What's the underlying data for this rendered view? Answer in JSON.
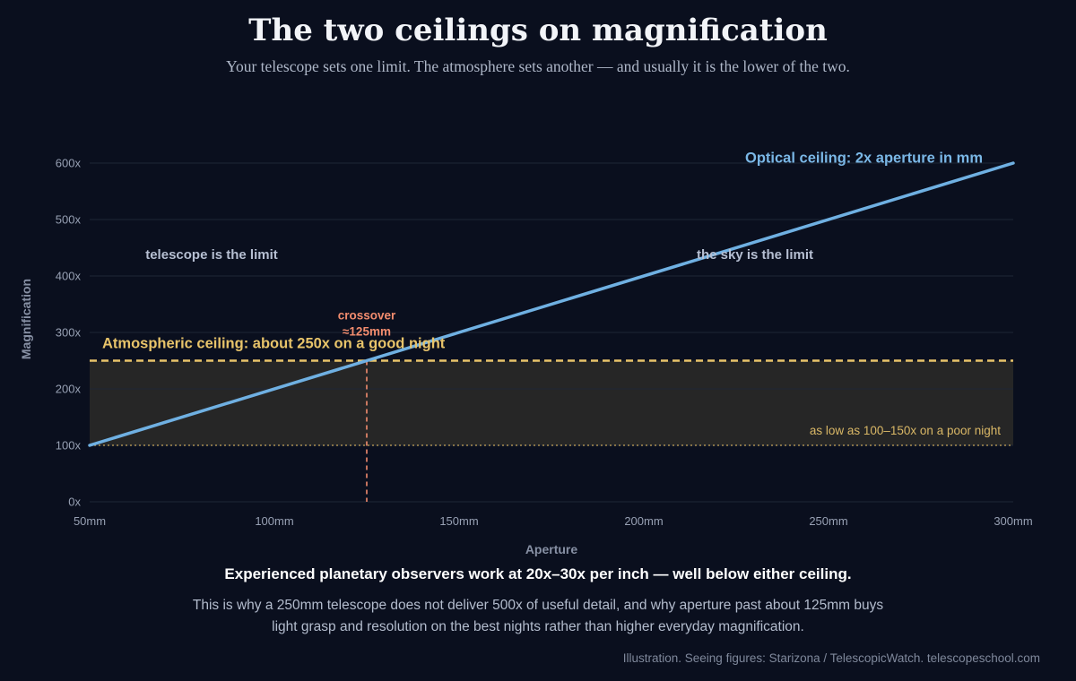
{
  "header": {
    "title": "The two ceilings on magnification",
    "subtitle": "Your telescope sets one limit. The atmosphere sets another — and usually it is the lower of the two."
  },
  "chart_data": {
    "type": "line",
    "xlabel": "Aperture",
    "ylabel": "Magnification",
    "xlim": [
      50,
      300
    ],
    "ylim": [
      0,
      600
    ],
    "x_ticks": [
      50,
      100,
      150,
      200,
      250,
      300
    ],
    "x_tick_labels": [
      "50mm",
      "100mm",
      "150mm",
      "200mm",
      "250mm",
      "300mm"
    ],
    "y_ticks": [
      0,
      100,
      200,
      300,
      400,
      500,
      600
    ],
    "y_tick_labels": [
      "0x",
      "100x",
      "200x",
      "300x",
      "400x",
      "500x",
      "600x"
    ],
    "grid": "horizontal",
    "series": [
      {
        "name": "Optical ceiling: 2x aperture in mm",
        "x": [
          50,
          300
        ],
        "y": [
          100,
          600
        ],
        "color": "#6fb0e2"
      }
    ],
    "reference_lines": {
      "atmospheric": {
        "label": "Atmospheric ceiling: about 250x on a good night",
        "y": 250,
        "color": "#e8c46a"
      },
      "poor_night": {
        "label": "as low as 100–150x on a poor night",
        "y": 100,
        "color": "#c9a85c"
      },
      "crossover": {
        "label_line1": "crossover",
        "label_line2": "≈125mm",
        "x": 125,
        "color": "#f28c6e"
      }
    },
    "band": {
      "y_from": 100,
      "y_to": 250,
      "color": "#262626"
    },
    "region_labels": {
      "left": "telescope is the limit",
      "right": "the sky is the limit"
    }
  },
  "notes": {
    "main": "Experienced planetary observers work at 20x–30x per inch — well below either ceiling.",
    "sub": "This is why a 250mm telescope does not deliver 500x of useful detail, and why aperture past about 125mm buys light grasp and resolution on the best nights rather than higher everyday magnification."
  },
  "source": "Illustration. Seeing figures: Starizona / TelescopicWatch. telescopeschool.com"
}
